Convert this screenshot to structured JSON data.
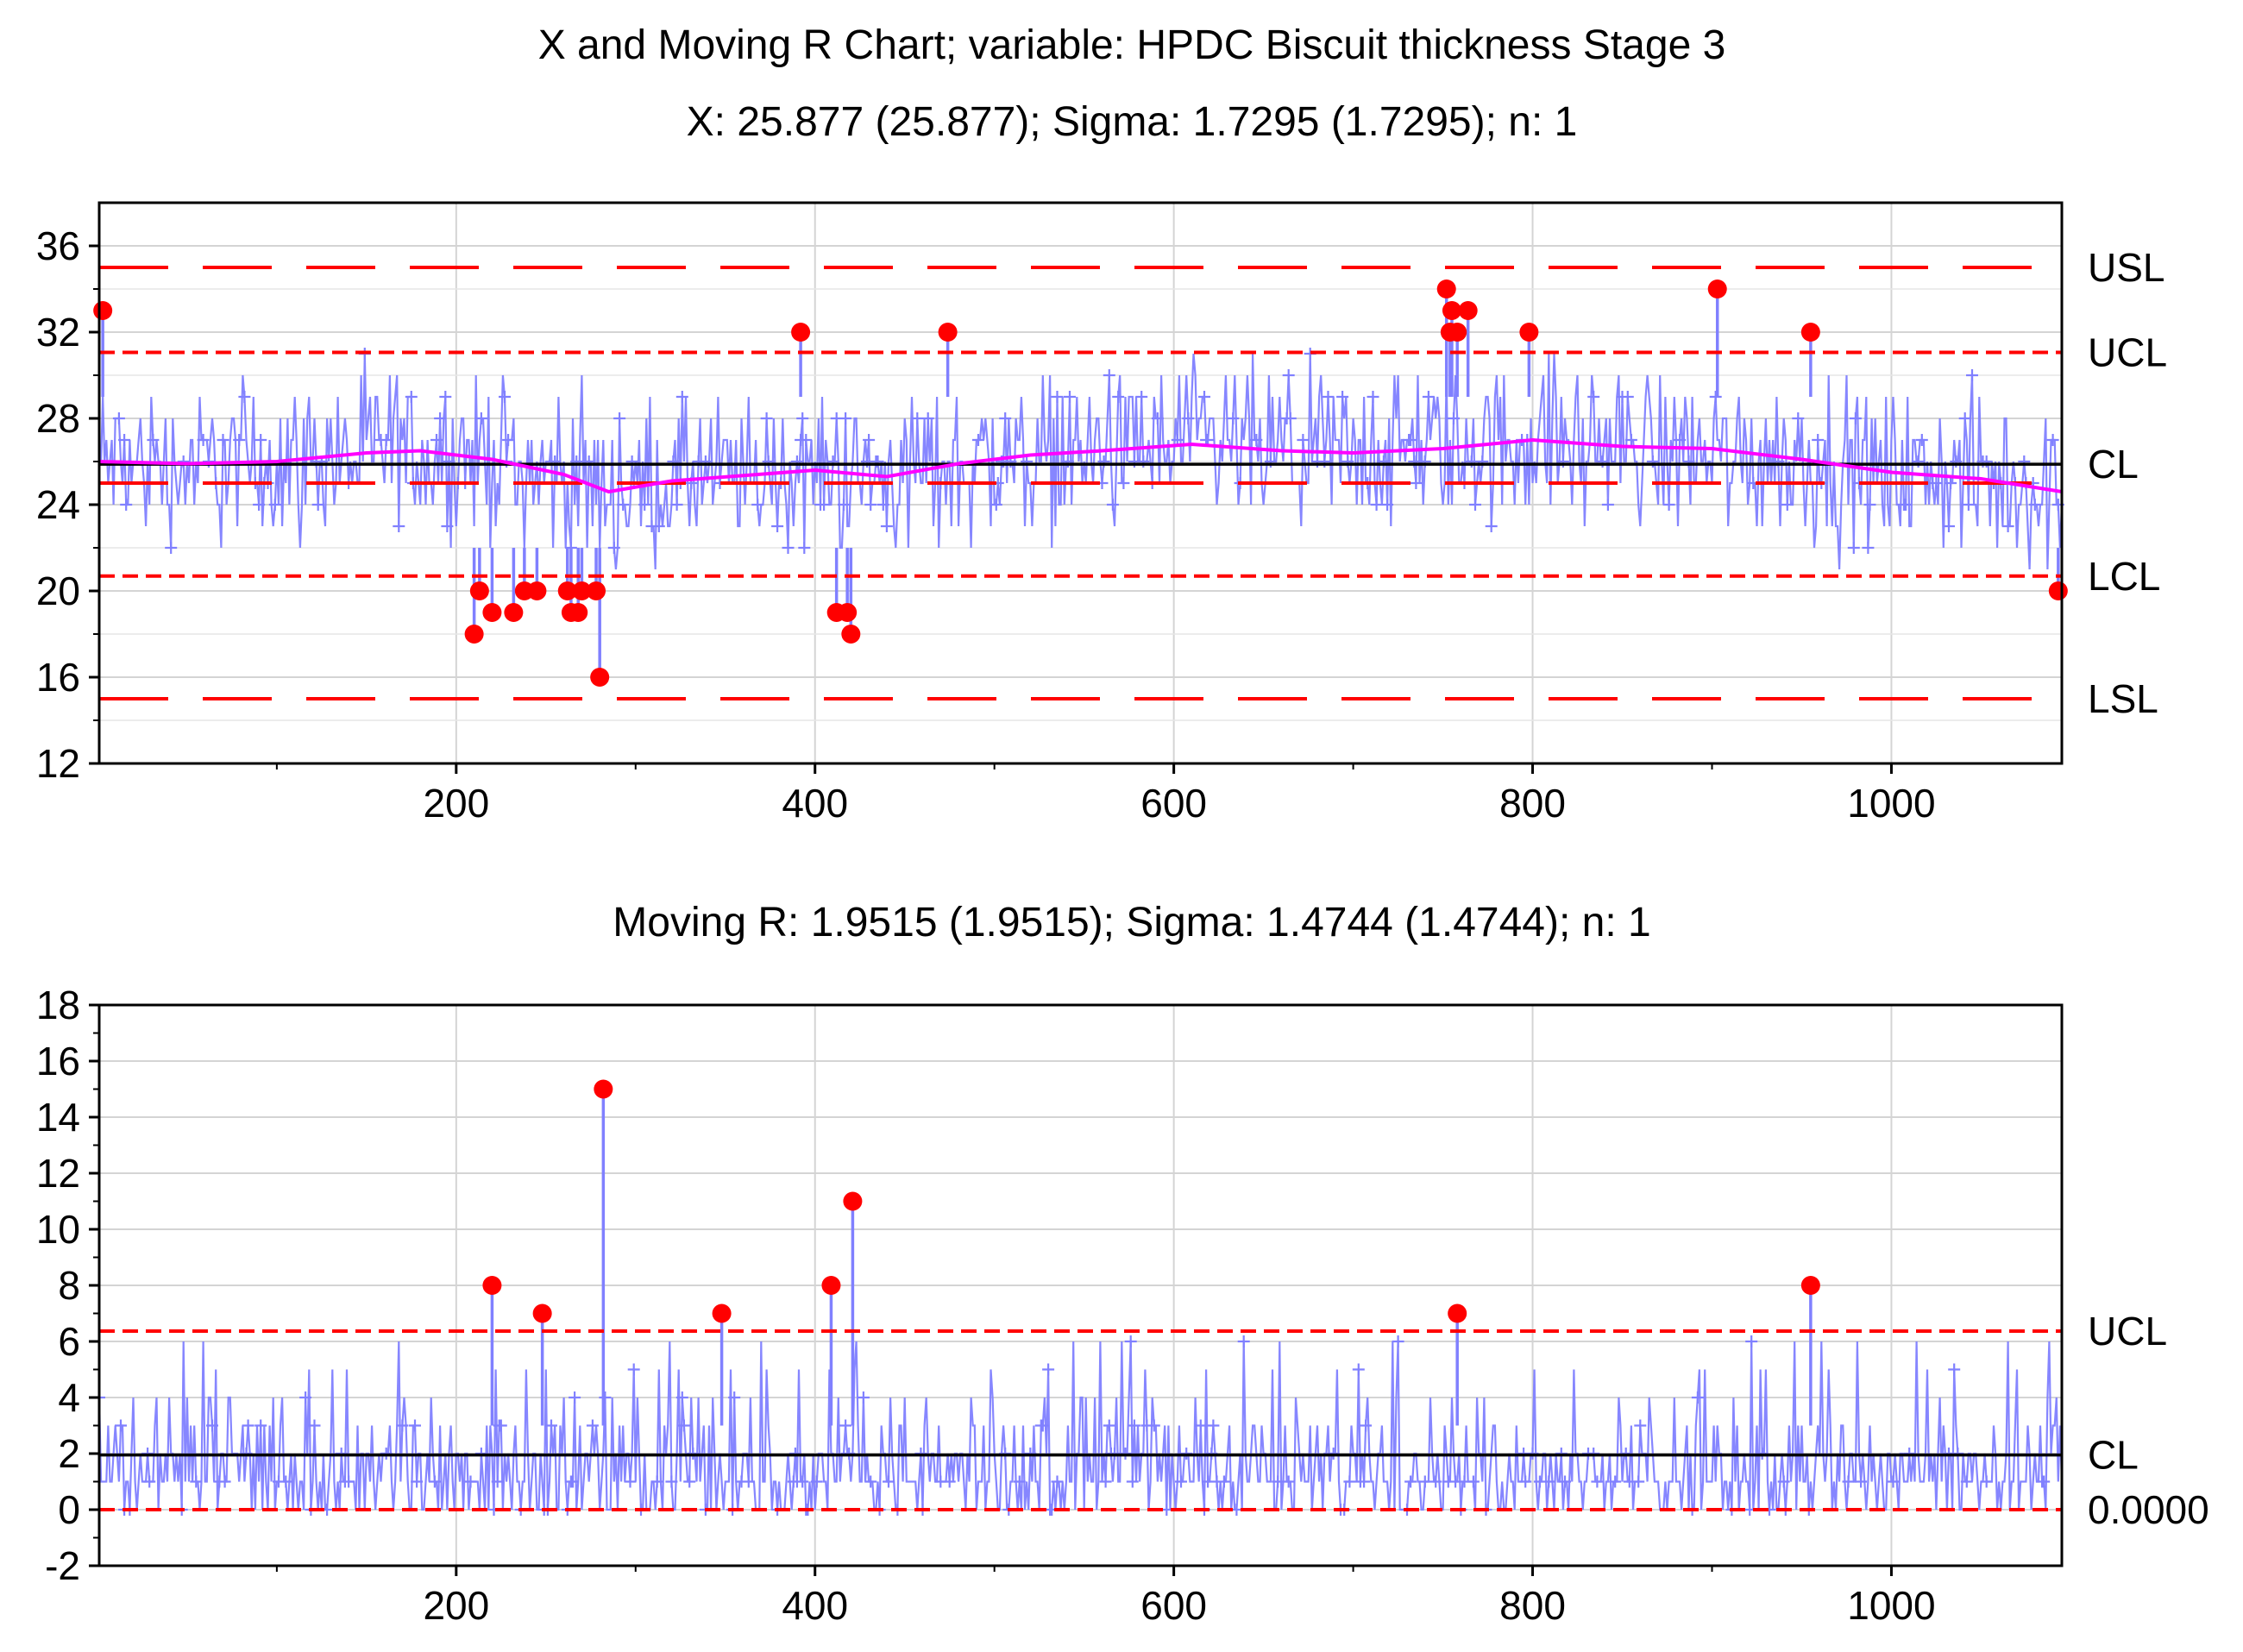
{
  "chart_data": [
    {
      "id": "x-chart",
      "type": "line",
      "title": "X and Moving R Chart; variable:  HPDC Biscuit thickness Stage 3",
      "subtitle": "X: 25.877 (25.877); Sigma: 1.7295 (1.7295); n: 1",
      "xlim": [
        1,
        1095
      ],
      "ylim": [
        12,
        38
      ],
      "x_ticks": [
        200,
        400,
        600,
        800,
        1000
      ],
      "y_ticks": [
        12,
        16,
        20,
        24,
        28,
        32,
        36
      ],
      "grid": true,
      "lines": [
        {
          "name": "USL",
          "value": 35,
          "style": "long-dash",
          "color": "#ff0000"
        },
        {
          "name": "UCL",
          "value": 31.06,
          "style": "short-dash",
          "color": "#ff0000"
        },
        {
          "name": "CL",
          "value": 25.877,
          "style": "solid",
          "color": "#000000"
        },
        {
          "name": "LCL",
          "value": 20.69,
          "style": "short-dash",
          "color": "#ff0000"
        },
        {
          "name": "LSL",
          "value": 15,
          "style": "long-dash",
          "color": "#ff0000"
        }
      ],
      "extra_lines": [
        {
          "name": "target",
          "value": 25,
          "style": "long-dash",
          "color": "#ff0000"
        }
      ],
      "series_color": "#8080ff",
      "trend": {
        "name": "moving average",
        "color": "#ff00ff",
        "x": [
          1,
          50,
          100,
          150,
          180,
          220,
          260,
          285,
          320,
          400,
          440,
          480,
          520,
          560,
          610,
          660,
          700,
          750,
          800,
          850,
          900,
          950,
          1000,
          1050,
          1095
        ],
        "y": [
          26,
          25.9,
          26,
          26.4,
          26.5,
          26.1,
          25.4,
          24.6,
          25.1,
          25.6,
          25.3,
          25.9,
          26.3,
          26.5,
          26.8,
          26.5,
          26.4,
          26.6,
          27.0,
          26.7,
          26.6,
          26.1,
          25.5,
          25.2,
          24.6
        ]
      },
      "out_of_control_points": [
        {
          "x": 3,
          "y": 33
        },
        {
          "x": 210,
          "y": 18
        },
        {
          "x": 213,
          "y": 20
        },
        {
          "x": 220,
          "y": 19
        },
        {
          "x": 232,
          "y": 19
        },
        {
          "x": 238,
          "y": 20
        },
        {
          "x": 245,
          "y": 20
        },
        {
          "x": 262,
          "y": 20
        },
        {
          "x": 264,
          "y": 19
        },
        {
          "x": 268,
          "y": 19
        },
        {
          "x": 270,
          "y": 20
        },
        {
          "x": 278,
          "y": 20
        },
        {
          "x": 280,
          "y": 16
        },
        {
          "x": 392,
          "y": 32
        },
        {
          "x": 412,
          "y": 19
        },
        {
          "x": 418,
          "y": 19
        },
        {
          "x": 420,
          "y": 18
        },
        {
          "x": 474,
          "y": 32
        },
        {
          "x": 752,
          "y": 34
        },
        {
          "x": 754,
          "y": 32
        },
        {
          "x": 755,
          "y": 33
        },
        {
          "x": 758,
          "y": 32
        },
        {
          "x": 764,
          "y": 33
        },
        {
          "x": 798,
          "y": 32
        },
        {
          "x": 903,
          "y": 34
        },
        {
          "x": 955,
          "y": 32
        },
        {
          "x": 1093,
          "y": 20
        }
      ]
    },
    {
      "id": "mr-chart",
      "type": "line",
      "title": "Moving R: 1.9515 (1.9515); Sigma: 1.4744 (1.4744); n: 1",
      "xlim": [
        1,
        1095
      ],
      "ylim": [
        -2,
        18
      ],
      "x_ticks": [
        200,
        400,
        600,
        800,
        1000
      ],
      "y_ticks": [
        -2,
        0,
        2,
        4,
        6,
        8,
        10,
        12,
        14,
        16,
        18
      ],
      "grid": true,
      "lines": [
        {
          "name": "UCL",
          "value": 6.37,
          "style": "short-dash",
          "color": "#ff0000"
        },
        {
          "name": "CL",
          "value": 1.9515,
          "style": "solid",
          "color": "#000000"
        },
        {
          "name": "0.0000",
          "value": 0,
          "style": "short-dash",
          "color": "#ff0000"
        }
      ],
      "series_color": "#8080ff",
      "out_of_control_points": [
        {
          "x": 220,
          "y": 8
        },
        {
          "x": 248,
          "y": 7
        },
        {
          "x": 282,
          "y": 15
        },
        {
          "x": 348,
          "y": 7
        },
        {
          "x": 409,
          "y": 8
        },
        {
          "x": 421,
          "y": 11
        },
        {
          "x": 758,
          "y": 7
        },
        {
          "x": 955,
          "y": 8
        }
      ]
    }
  ]
}
